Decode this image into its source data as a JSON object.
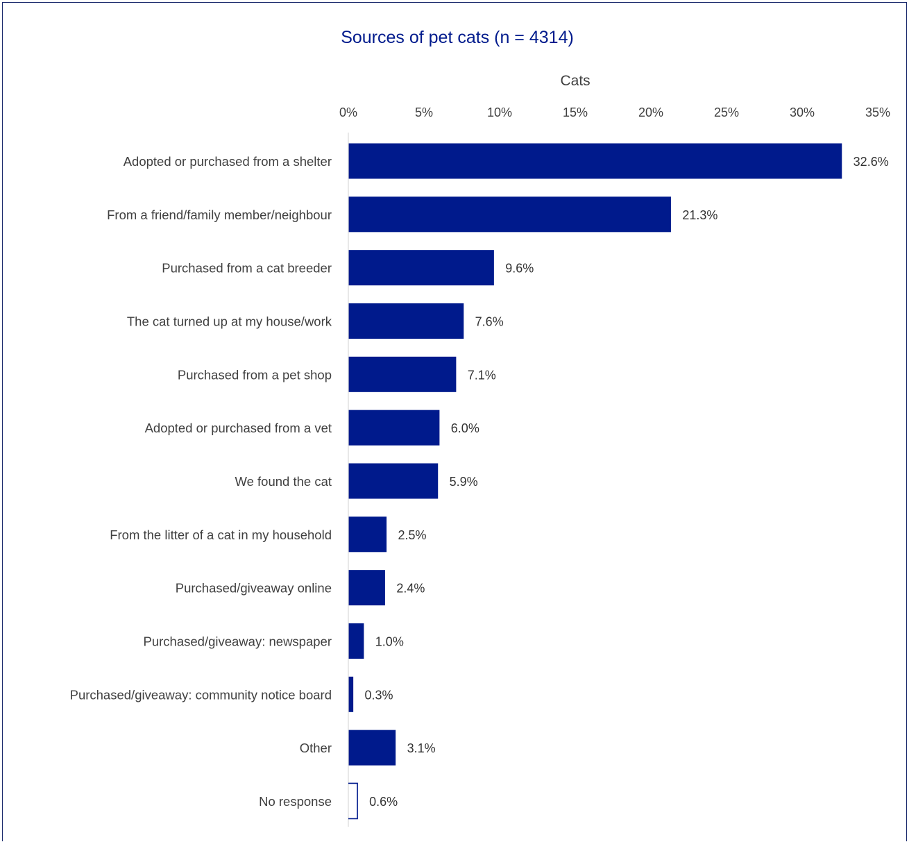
{
  "chart_data": {
    "type": "bar",
    "orientation": "horizontal",
    "title": "Sources of pet cats (n = 4314)",
    "axis_title": "Cats",
    "xlim": [
      0,
      35
    ],
    "ticks": [
      "0%",
      "5%",
      "10%",
      "15%",
      "20%",
      "25%",
      "30%",
      "35%"
    ],
    "tick_values": [
      0,
      5,
      10,
      15,
      20,
      25,
      30,
      35
    ],
    "categories": [
      "Adopted or purchased from a shelter",
      "From a friend/family member/neighbour",
      "Purchased from a cat breeder",
      "The cat turned up at my house/work",
      "Purchased from a pet shop",
      "Adopted or purchased from a vet",
      "We found the cat",
      "From the litter of a cat in my household",
      "Purchased/giveaway online",
      "Purchased/giveaway: newspaper",
      "Purchased/giveaway: community notice board",
      "Other",
      "No response"
    ],
    "values": [
      32.6,
      21.3,
      9.6,
      7.6,
      7.1,
      6.0,
      5.9,
      2.5,
      2.4,
      1.0,
      0.3,
      3.1,
      0.6
    ],
    "value_labels": [
      "32.6%",
      "21.3%",
      "9.6%",
      "7.6%",
      "7.1%",
      "6.0%",
      "5.9%",
      "2.5%",
      "2.4%",
      "1.0%",
      "0.3%",
      "3.1%",
      "0.6%"
    ],
    "bar_styles": [
      "filled",
      "filled",
      "filled",
      "filled",
      "filled",
      "filled",
      "filled",
      "filled",
      "filled",
      "filled",
      "filled",
      "filled",
      "outline"
    ],
    "grid": false,
    "legend": "none",
    "colors": {
      "bar": "#001a8c",
      "title": "#001a8c",
      "text": "#404040",
      "axis": "#d9d9d9",
      "border": "#1a2a6c"
    }
  }
}
